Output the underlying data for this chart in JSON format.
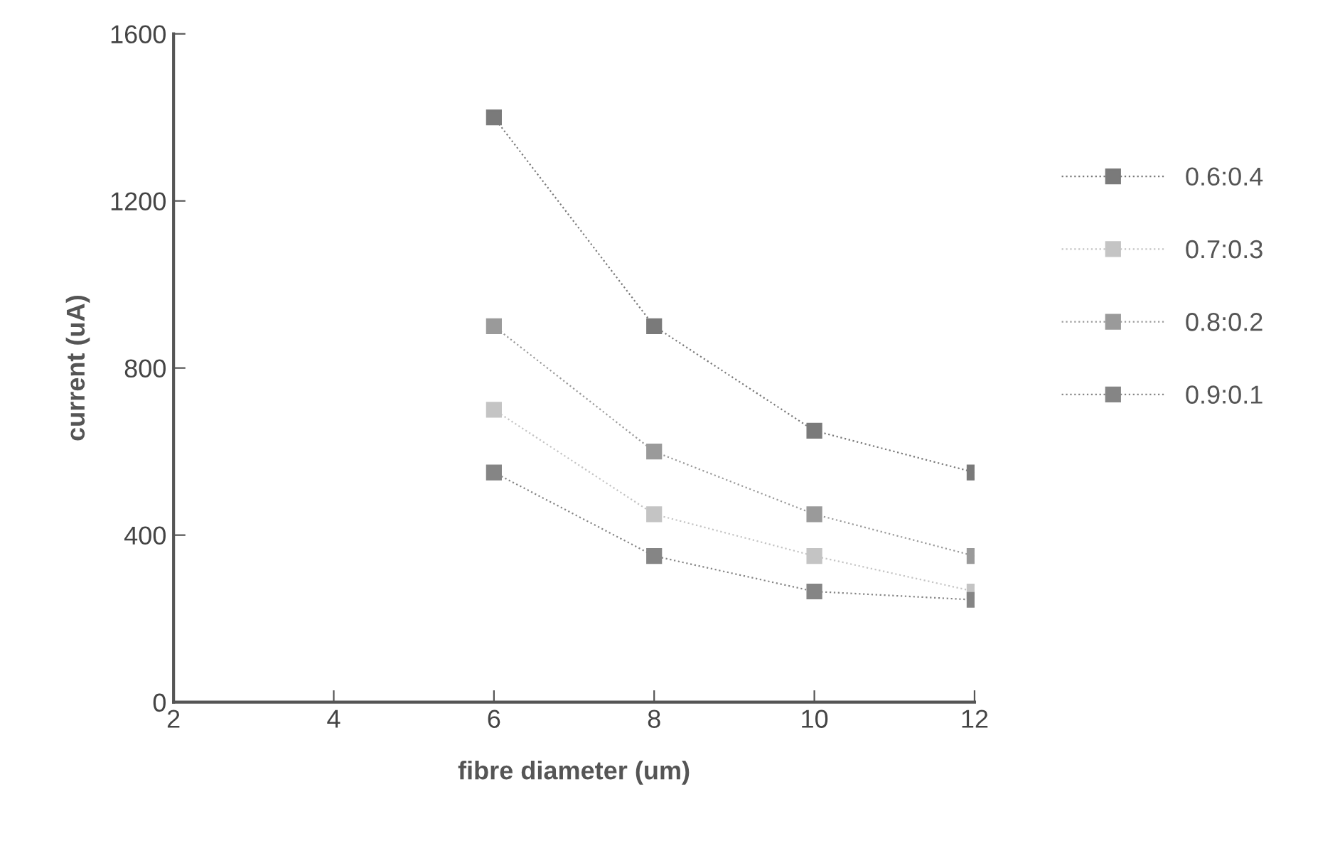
{
  "chart_data": {
    "type": "line",
    "xlabel": "fibre diameter (um)",
    "ylabel": "current (uA)",
    "x": [
      6,
      8,
      10,
      12
    ],
    "series": [
      {
        "name": "0.6:0.4",
        "color": "#7a7a7a",
        "values": [
          1400,
          900,
          650,
          550
        ]
      },
      {
        "name": "0.7:0.3",
        "color": "#c4c4c4",
        "values": [
          700,
          450,
          350,
          265
        ]
      },
      {
        "name": "0.8:0.2",
        "color": "#9a9a9a",
        "values": [
          900,
          600,
          450,
          350
        ]
      },
      {
        "name": "0.9:0.1",
        "color": "#858585",
        "values": [
          550,
          350,
          265,
          245
        ]
      }
    ],
    "xlim": [
      2,
      12
    ],
    "xticks": [
      2,
      4,
      6,
      8,
      10,
      12
    ],
    "ylim": [
      0,
      1600
    ],
    "yticks": [
      0,
      400,
      800,
      1200,
      1600
    ],
    "marker": "square",
    "line_style": "dotted",
    "legend": "right",
    "grid": false
  }
}
